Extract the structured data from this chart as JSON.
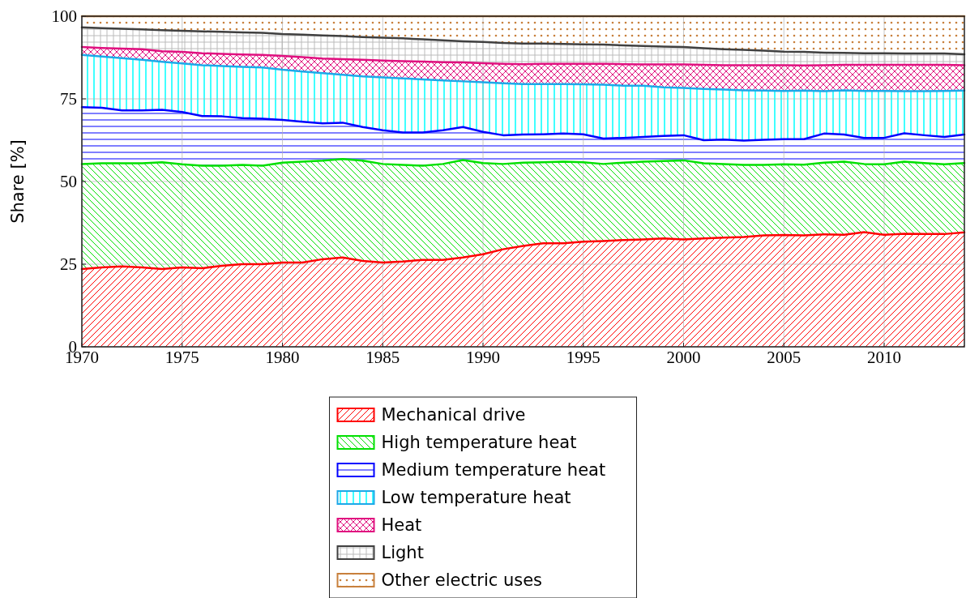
{
  "chart_data": {
    "type": "area",
    "stacked": true,
    "ylabel": "Share [%]",
    "x": [
      1970,
      1971,
      1972,
      1973,
      1974,
      1975,
      1976,
      1977,
      1978,
      1979,
      1980,
      1981,
      1982,
      1983,
      1984,
      1985,
      1986,
      1987,
      1988,
      1989,
      1990,
      1991,
      1992,
      1993,
      1994,
      1995,
      1996,
      1997,
      1998,
      1999,
      2000,
      2001,
      2002,
      2003,
      2004,
      2005,
      2006,
      2007,
      2008,
      2009,
      2010,
      2011,
      2012,
      2013,
      2014
    ],
    "xlim": [
      1970,
      2014
    ],
    "xticks": [
      1970,
      1975,
      1980,
      1985,
      1990,
      1995,
      2000,
      2005,
      2010
    ],
    "ylim": [
      0,
      100
    ],
    "yticks": [
      0,
      25,
      50,
      75,
      100
    ],
    "grid": true,
    "legend": "bottom",
    "series": [
      {
        "name": "Mechanical drive",
        "color": "#ff0000",
        "values": [
          23.5,
          24,
          24.3,
          24,
          23.5,
          24,
          23.8,
          24.5,
          25,
          25,
          25.5,
          25.5,
          26.5,
          27,
          26,
          25.5,
          25.8,
          26.3,
          26.3,
          27,
          28,
          29.5,
          30.5,
          31.3,
          31.3,
          31.8,
          32,
          32.3,
          32.5,
          32.8,
          32.5,
          32.8,
          33,
          33.2,
          33.7,
          33.8,
          33.7,
          34,
          33.9,
          34.7,
          33.9,
          34.2,
          34.1,
          34.1,
          34.6
        ]
      },
      {
        "name": "High temperature heat",
        "color": "#00e000",
        "values": [
          31.8,
          31.5,
          31.2,
          31.5,
          32.3,
          31.2,
          31,
          30.3,
          30,
          29.8,
          30.2,
          30.5,
          29.8,
          29.8,
          30.3,
          29.8,
          29.2,
          28.5,
          29,
          29.5,
          27.6,
          25.8,
          25.2,
          24.5,
          24.7,
          24,
          23.3,
          23.4,
          23.5,
          23.4,
          23.9,
          22.7,
          22.3,
          21.8,
          21.3,
          21.4,
          21.4,
          21.7,
          22.1,
          20.6,
          21.3,
          21.8,
          21.5,
          21.1,
          21
        ]
      },
      {
        "name": "Medium temperature heat",
        "color": "#0000ff",
        "values": [
          17.2,
          16.8,
          16,
          16,
          15.9,
          15.8,
          15,
          14.9,
          14.2,
          14.2,
          12.9,
          12.1,
          11.3,
          11,
          10.2,
          10.2,
          9.8,
          10,
          10.2,
          10,
          9.4,
          8.7,
          8.5,
          8.5,
          8.5,
          8.5,
          7.7,
          7.5,
          7.5,
          7.6,
          7.6,
          7,
          7.4,
          7.4,
          7.6,
          7.6,
          7.7,
          8.8,
          8.2,
          7.9,
          8,
          8.6,
          8.4,
          8.3,
          8.6
        ]
      },
      {
        "name": "Low temperature heat",
        "color": "#1ea8e8",
        "values": [
          15.8,
          15.5,
          15.8,
          15.3,
          14.5,
          14.7,
          15.4,
          15.2,
          15.5,
          15.5,
          15.2,
          15.2,
          15.2,
          14.5,
          15.3,
          16,
          16.4,
          16.1,
          15.1,
          13.8,
          15,
          15.7,
          15.3,
          15.2,
          15,
          15.1,
          16.3,
          15.8,
          15.5,
          14.7,
          14.3,
          15.5,
          15.1,
          15.2,
          14.9,
          14.6,
          14.7,
          12.8,
          13.4,
          14.2,
          14.2,
          12.7,
          13.3,
          13.9,
          13.3
        ]
      },
      {
        "name": "Heat",
        "color": "#e0107f",
        "values": [
          2.4,
          2.6,
          2.9,
          3.2,
          3.2,
          3.5,
          3.6,
          3.7,
          3.7,
          3.8,
          4.2,
          4.3,
          4.4,
          4.7,
          5,
          5.1,
          5.2,
          5.4,
          5.5,
          5.7,
          5.8,
          5.9,
          6,
          6.1,
          6.1,
          6.2,
          6.3,
          6.5,
          6.4,
          6.9,
          7.1,
          7.3,
          7.4,
          7.6,
          7.7,
          7.8,
          7.6,
          7.9,
          7.7,
          7.9,
          7.9,
          8,
          8,
          7.9,
          7.7
        ]
      },
      {
        "name": "Light",
        "color": "#404040",
        "values": [
          5.9,
          6,
          6,
          6,
          6.4,
          6.4,
          6.6,
          6.7,
          6.7,
          6.7,
          6.6,
          6.8,
          7,
          7,
          6.9,
          6.9,
          6.9,
          6.7,
          6.6,
          6.4,
          6.4,
          6.3,
          6.2,
          6.1,
          6,
          5.9,
          5.8,
          5.7,
          5.6,
          5.4,
          5.3,
          5,
          4.8,
          4.6,
          4.4,
          4.1,
          4.1,
          3.8,
          3.6,
          3.5,
          3.5,
          3.4,
          3.4,
          3.4,
          3.3
        ]
      },
      {
        "name": "Other electric uses",
        "color": "#c8803c",
        "values": [
          3.4,
          3.6,
          3.8,
          4,
          4.2,
          4.4,
          4.6,
          4.7,
          4.9,
          5,
          5.4,
          5.6,
          5.8,
          6,
          6.3,
          6.5,
          6.7,
          7,
          7.3,
          7.6,
          7.8,
          8.1,
          8.3,
          8.3,
          8.4,
          8.5,
          8.6,
          8.8,
          9,
          9.2,
          9.3,
          9.7,
          10,
          10.2,
          10.4,
          10.7,
          10.8,
          11,
          11.1,
          11.2,
          11.2,
          11.3,
          11.3,
          11.3,
          11.5
        ]
      }
    ]
  }
}
